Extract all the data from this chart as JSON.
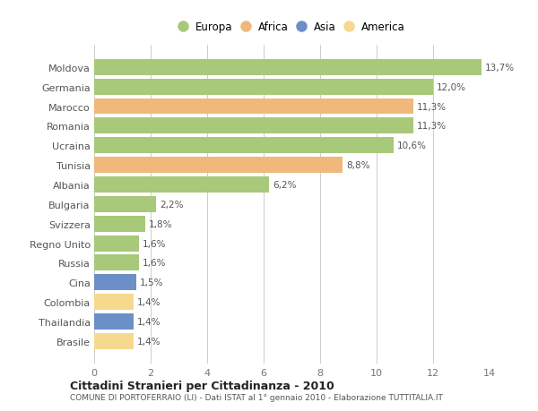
{
  "categories": [
    "Brasile",
    "Thailandia",
    "Colombia",
    "Cina",
    "Russia",
    "Regno Unito",
    "Svizzera",
    "Bulgaria",
    "Albania",
    "Tunisia",
    "Ucraina",
    "Romania",
    "Marocco",
    "Germania",
    "Moldova"
  ],
  "values": [
    1.4,
    1.4,
    1.4,
    1.5,
    1.6,
    1.6,
    1.8,
    2.2,
    6.2,
    8.8,
    10.6,
    11.3,
    11.3,
    12.0,
    13.7
  ],
  "labels": [
    "1,4%",
    "1,4%",
    "1,4%",
    "1,5%",
    "1,6%",
    "1,6%",
    "1,8%",
    "2,2%",
    "6,2%",
    "8,8%",
    "10,6%",
    "11,3%",
    "11,3%",
    "12,0%",
    "13,7%"
  ],
  "colors": [
    "#f5d98e",
    "#6d8fc7",
    "#f5d98e",
    "#6d8fc7",
    "#a8c87a",
    "#a8c87a",
    "#a8c87a",
    "#a8c87a",
    "#a8c87a",
    "#f0b87a",
    "#a8c87a",
    "#a8c87a",
    "#f0b87a",
    "#a8c87a",
    "#a8c87a"
  ],
  "legend_labels": [
    "Europa",
    "Africa",
    "Asia",
    "America"
  ],
  "legend_colors": [
    "#a8c87a",
    "#f0b87a",
    "#6d8fc7",
    "#f5d98e"
  ],
  "title": "Cittadini Stranieri per Cittadinanza - 2010",
  "subtitle": "COMUNE DI PORTOFERRAIO (LI) - Dati ISTAT al 1° gennaio 2010 - Elaborazione TUTTITALIA.IT",
  "xlim": [
    0,
    14
  ],
  "xticks": [
    0,
    2,
    4,
    6,
    8,
    10,
    12,
    14
  ],
  "bg_color": "#ffffff",
  "grid_color": "#cccccc",
  "bar_height": 0.82
}
